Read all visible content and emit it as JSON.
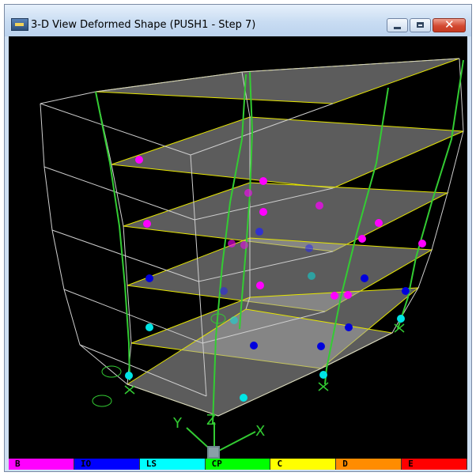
{
  "window": {
    "title": "3-D View  Deformed Shape (PUSH1 - Step 7)",
    "icon": "sap2000-app-icon",
    "controls": [
      "minimize-icon",
      "maximize-icon",
      "close-icon"
    ]
  },
  "view": {
    "background": "#000000",
    "frame_color": "#c8c8c8",
    "column_color": "#33cc33",
    "slab_color": "#9a9a9a",
    "slab_edge_color": "#e6e600",
    "axes": {
      "x_label": "X",
      "y_label": "Y",
      "z_label": "Z"
    }
  },
  "legend": {
    "items": [
      {
        "label": "B",
        "color": "#ff00ff",
        "text_color": "#000000"
      },
      {
        "label": "IO",
        "color": "#0000ff",
        "text_color": "#000000"
      },
      {
        "label": "LS",
        "color": "#00ffff",
        "text_color": "#000000"
      },
      {
        "label": "CP",
        "color": "#00ff00",
        "text_color": "#000000"
      },
      {
        "label": "C",
        "color": "#ffff00",
        "text_color": "#000000"
      },
      {
        "label": "D",
        "color": "#ff8c00",
        "text_color": "#000000"
      },
      {
        "label": "E",
        "color": "#ff0000",
        "text_color": "#000000"
      }
    ]
  }
}
